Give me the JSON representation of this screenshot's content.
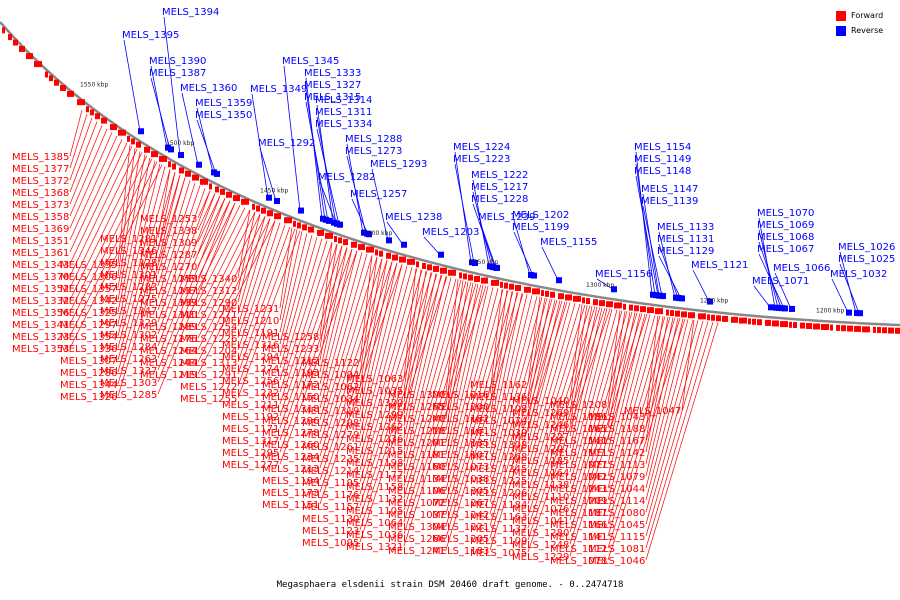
{
  "caption": "Megasphaera elsdenii strain DSM 20460 draft genome. - 0..2474718",
  "legend": {
    "forward_label": "Forward",
    "reverse_label": "Reverse",
    "forward_color": "#ff0000",
    "reverse_color": "#0000ff"
  },
  "colors": {
    "forward": "#ff0000",
    "reverse": "#0000ff",
    "backbone": "#888888"
  },
  "kbp_labels": [
    "1550 kbp",
    "1500 kbp",
    "1450 kbp",
    "1400 kbp",
    "1350 kbp",
    "1300 kbp",
    "1250 kbp",
    "1200 kbp"
  ],
  "reverse_labels": [
    "MELS_1394",
    "MELS_1395",
    "MELS_1390",
    "MELS_1387",
    "MELS_1360",
    "MELS_1359",
    "MELS_1350",
    "MELS_1345",
    "MELS_1349",
    "MELS_1333",
    "MELS_1327",
    "MELS_1315",
    "MELS_1314",
    "MELS_1311",
    "MELS_1334",
    "MELS_1292",
    "MELS_1288",
    "MELS_1273",
    "MELS_1293",
    "MELS_1282",
    "MELS_1257",
    "MELS_1238",
    "MELS_1224",
    "MELS_1223",
    "MELS_1222",
    "MELS_1217",
    "MELS_1228",
    "MELS_1239",
    "MELS_1203",
    "MELS_1202",
    "MELS_1199",
    "MELS_1155",
    "MELS_1154",
    "MELS_1149",
    "MELS_1148",
    "MELS_1147",
    "MELS_1139",
    "MELS_1133",
    "MELS_1131",
    "MELS_1129",
    "MELS_1121",
    "MELS_1156",
    "MELS_1070",
    "MELS_1069",
    "MELS_1068",
    "MELS_1067",
    "MELS_1066",
    "MELS_1071",
    "MELS_1026",
    "MELS_1025",
    "MELS_1032"
  ],
  "forward_labels": [
    "MELS_1385",
    "MELS_1377",
    "MELS_1372",
    "MELS_1368",
    "MELS_1373",
    "MELS_1358",
    "MELS_1369",
    "MELS_1351",
    "MELS_1361",
    "MELS_1343",
    "MELS_1370",
    "MELS_1352",
    "MELS_1332",
    "MELS_1356",
    "MELS_1341",
    "MELS_1323",
    "MELS_1353",
    "MELS_1335",
    "MELS_1306",
    "MELS_1357",
    "MELS_1342",
    "MELS_1325",
    "MELS_1297",
    "MELS_1354",
    "MELS_1336",
    "MELS_1307",
    "MELS_1286",
    "MELS_1344",
    "MELS_1326",
    "MELS_1281",
    "MELS_1346",
    "MELS_1328",
    "MELS_1301",
    "MELS_1283",
    "MELS_1275",
    "MELS_1347",
    "MELS_1329",
    "MELS_1302",
    "MELS_1284",
    "MELS_1263",
    "MELS_1337",
    "MELS_1303",
    "MELS_1285",
    "MELS_1253",
    "MELS_1338",
    "MELS_1309",
    "MELS_1287",
    "MELS_1270",
    "MELS_1259",
    "MELS_1237",
    "MELS_1339",
    "MELS_1310",
    "MELS_1289",
    "MELS_1276",
    "MELS_1264",
    "MELS_1244",
    "MELS_1219",
    "MELS_1340",
    "MELS_1312",
    "MELS_1290",
    "MELS_1271",
    "MELS_1254",
    "MELS_1226",
    "MELS_1204",
    "MELS_1313",
    "MELS_1291",
    "MELS_1272",
    "MELS_1255",
    "MELS_1231",
    "MELS_1210",
    "MELS_1191",
    "MELS_1316",
    "MELS_1294",
    "MELS_1274",
    "MELS_1256",
    "MELS_1232",
    "MELS_1211",
    "MELS_1192",
    "MELS_1171",
    "MELS_1317",
    "MELS_1295",
    "MELS_1277",
    "MELS_1258",
    "MELS_1233",
    "MELS_1212",
    "MELS_1193",
    "MELS_1172",
    "MELS_1150",
    "MELS_1318",
    "MELS_1296",
    "MELS_1278",
    "MELS_1260",
    "MELS_1234",
    "MELS_1213",
    "MELS_1194",
    "MELS_1173",
    "MELS_1151",
    "MELS_1122",
    "MELS_1094",
    "MELS_1062",
    "MELS_1034",
    "MELS_1319",
    "MELS_1298",
    "MELS_1279",
    "MELS_1261",
    "MELS_1235",
    "MELS_1214",
    "MELS_1195",
    "MELS_1176",
    "MELS_1157",
    "MELS_1130",
    "MELS_1123",
    "MELS_1095",
    "MELS_1063",
    "MELS_1035",
    "MELS_1320",
    "MELS_1299",
    "MELS_1262",
    "MELS_1236",
    "MELS_1215",
    "MELS_1198",
    "MELS_1177",
    "MELS_1158",
    "MELS_1132",
    "MELS_1105",
    "MELS_1064",
    "MELS_1036",
    "MELS_1321",
    "MELS_1300",
    "MELS_1265",
    "MELS_1240",
    "MELS_1218",
    "MELS_1201",
    "MELS_1181",
    "MELS_1160",
    "MELS_1134",
    "MELS_1106",
    "MELS_1072",
    "MELS_1037",
    "MELS_1304",
    "MELS_1266",
    "MELS_1241",
    "MELS_1216",
    "MELS_1200",
    "MELS_1182",
    "MELS_1161",
    "MELS_1135",
    "MELS_1107",
    "MELS_1073",
    "MELS_1038",
    "MELS_1305",
    "MELS_1267",
    "MELS_1242",
    "MELS_1221",
    "MELS_1205",
    "MELS_1183",
    "MELS_1162",
    "MELS_1136",
    "MELS_1108",
    "MELS_1074",
    "MELS_1039",
    "MELS_1308",
    "MELS_1268",
    "MELS_1245",
    "MELS_1225",
    "MELS_1206",
    "MELS_1184",
    "MELS_1163",
    "MELS_1137",
    "MELS_1109",
    "MELS_1075",
    "MELS_1040",
    "MELS_1269",
    "MELS_1246",
    "MELS_1227",
    "MELS_1207",
    "MELS_1185",
    "MELS_1164",
    "MELS_1138",
    "MELS_1110",
    "MELS_1076",
    "MELS_1041",
    "MELS_1280",
    "MELS_1248",
    "MELS_1229",
    "MELS_1208",
    "MELS_1186",
    "MELS_1165",
    "MELS_1140",
    "MELS_1111",
    "MELS_1077",
    "MELS_1042",
    "MELS_1243",
    "MELS_1209",
    "MELS_1187",
    "MELS_1166",
    "MELS_1141",
    "MELS_1112",
    "MELS_1078",
    "MELS_1043",
    "MELS_1188",
    "MELS_1167",
    "MELS_1142",
    "MELS_1113",
    "MELS_1079",
    "MELS_1044",
    "MELS_1114",
    "MELS_1080",
    "MELS_1045",
    "MELS_1115",
    "MELS_1081",
    "MELS_1046",
    "MELS_1047"
  ]
}
